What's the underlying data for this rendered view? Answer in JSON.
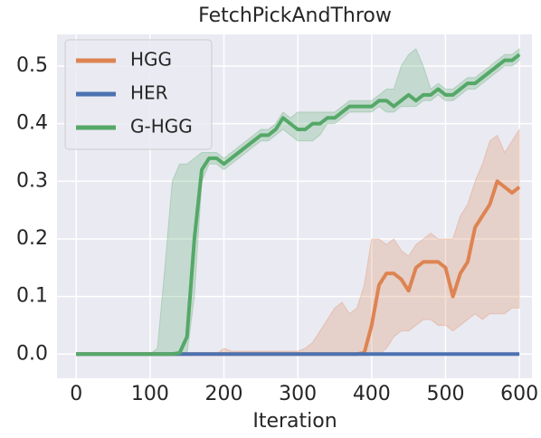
{
  "chart_data": {
    "type": "line",
    "title": "FetchPickAndThrow",
    "x_label": "Iteration",
    "x": [
      0,
      10,
      20,
      30,
      40,
      50,
      60,
      70,
      80,
      90,
      100,
      110,
      120,
      130,
      140,
      150,
      160,
      170,
      180,
      190,
      200,
      210,
      220,
      230,
      240,
      250,
      260,
      270,
      280,
      290,
      300,
      310,
      320,
      330,
      340,
      350,
      360,
      370,
      380,
      390,
      400,
      410,
      420,
      430,
      440,
      450,
      460,
      470,
      480,
      490,
      500,
      510,
      520,
      530,
      540,
      550,
      560,
      570,
      580,
      590,
      600
    ],
    "xlim": [
      -26,
      617
    ],
    "ylim": [
      -0.042,
      0.555
    ],
    "xticks": [
      0,
      100,
      200,
      300,
      400,
      500,
      600
    ],
    "yticks": [
      {
        "value": 0,
        "label": "0.0"
      },
      0.1,
      0.2,
      0.3,
      0.4,
      0.5
    ],
    "grid": true,
    "legend": "upper left",
    "series": [
      {
        "name": "HGG",
        "color": "#dd8452",
        "values": [
          0,
          0,
          0,
          0,
          0,
          0,
          0,
          0,
          0,
          0,
          0,
          0,
          0,
          0,
          0,
          0,
          0,
          0,
          0,
          0,
          0,
          0,
          0,
          0,
          0,
          0,
          0,
          0,
          0,
          0,
          0,
          0,
          0,
          0,
          0,
          0,
          0,
          0,
          0,
          0.002,
          0.05,
          0.12,
          0.14,
          0.14,
          0.13,
          0.11,
          0.15,
          0.16,
          0.16,
          0.16,
          0.15,
          0.1,
          0.14,
          0.16,
          0.22,
          0.24,
          0.26,
          0.3,
          0.29,
          0.28,
          0.29
        ],
        "lower": [
          0,
          0,
          0,
          0,
          0,
          0,
          0,
          0,
          0,
          0,
          0,
          0,
          0,
          0,
          0,
          0,
          0,
          0,
          0,
          0,
          0,
          0,
          0,
          0,
          0,
          0,
          0,
          0,
          0,
          0,
          0,
          0,
          0,
          0,
          0,
          0,
          0,
          0,
          0,
          0,
          0,
          0,
          0.01,
          0.03,
          0.04,
          0.04,
          0.05,
          0.06,
          0.06,
          0.05,
          0.05,
          0.04,
          0.05,
          0.06,
          0.07,
          0.06,
          0.07,
          0.07,
          0.07,
          0.08,
          0.08
        ],
        "upper": [
          0,
          0,
          0,
          0,
          0,
          0,
          0,
          0,
          0,
          0,
          0,
          0,
          0,
          0,
          0,
          0,
          0,
          0,
          0,
          0,
          0.01,
          0.005,
          0.005,
          0.005,
          0.005,
          0.005,
          0.005,
          0.005,
          0.005,
          0.005,
          0.005,
          0.01,
          0.02,
          0.04,
          0.06,
          0.08,
          0.09,
          0.07,
          0.08,
          0.12,
          0.2,
          0.2,
          0.19,
          0.2,
          0.18,
          0.17,
          0.19,
          0.2,
          0.21,
          0.2,
          0.2,
          0.2,
          0.24,
          0.26,
          0.3,
          0.33,
          0.37,
          0.38,
          0.35,
          0.37,
          0.39
        ]
      },
      {
        "name": "HER",
        "color": "#4c72b0",
        "values": [
          0,
          0,
          0,
          0,
          0,
          0,
          0,
          0,
          0,
          0,
          0,
          0,
          0,
          0,
          0,
          0,
          0,
          0,
          0,
          0,
          0,
          0,
          0,
          0,
          0,
          0,
          0,
          0,
          0,
          0,
          0,
          0,
          0,
          0,
          0,
          0,
          0,
          0,
          0,
          0,
          0,
          0,
          0,
          0,
          0,
          0,
          0,
          0,
          0,
          0,
          0,
          0,
          0,
          0,
          0,
          0,
          0,
          0,
          0,
          0,
          0
        ]
      },
      {
        "name": "G-HGG",
        "color": "#55a868",
        "values": [
          0,
          0,
          0,
          0,
          0,
          0,
          0,
          0,
          0,
          0,
          0,
          0,
          0,
          0,
          0.002,
          0.03,
          0.2,
          0.32,
          0.34,
          0.34,
          0.33,
          0.34,
          0.35,
          0.36,
          0.37,
          0.38,
          0.38,
          0.39,
          0.41,
          0.4,
          0.39,
          0.39,
          0.4,
          0.4,
          0.41,
          0.41,
          0.42,
          0.43,
          0.43,
          0.43,
          0.43,
          0.44,
          0.44,
          0.43,
          0.44,
          0.45,
          0.44,
          0.45,
          0.45,
          0.46,
          0.45,
          0.45,
          0.46,
          0.47,
          0.47,
          0.48,
          0.49,
          0.5,
          0.51,
          0.51,
          0.52
        ],
        "lower": [
          0,
          0,
          0,
          0,
          0,
          0,
          0,
          0,
          0,
          0,
          0,
          0,
          0,
          0,
          0,
          0,
          0.1,
          0.3,
          0.33,
          0.33,
          0.32,
          0.33,
          0.34,
          0.35,
          0.36,
          0.37,
          0.37,
          0.38,
          0.39,
          0.38,
          0.37,
          0.37,
          0.37,
          0.38,
          0.4,
          0.4,
          0.41,
          0.42,
          0.42,
          0.42,
          0.42,
          0.43,
          0.42,
          0.42,
          0.43,
          0.43,
          0.43,
          0.44,
          0.44,
          0.45,
          0.44,
          0.44,
          0.45,
          0.46,
          0.46,
          0.47,
          0.48,
          0.49,
          0.5,
          0.5,
          0.51
        ],
        "upper": [
          0,
          0,
          0,
          0,
          0,
          0,
          0,
          0,
          0,
          0,
          0,
          0.01,
          0.15,
          0.3,
          0.33,
          0.33,
          0.34,
          0.35,
          0.35,
          0.35,
          0.34,
          0.35,
          0.36,
          0.37,
          0.38,
          0.39,
          0.39,
          0.4,
          0.42,
          0.41,
          0.42,
          0.42,
          0.42,
          0.42,
          0.42,
          0.42,
          0.43,
          0.44,
          0.44,
          0.44,
          0.44,
          0.45,
          0.46,
          0.46,
          0.5,
          0.52,
          0.53,
          0.5,
          0.46,
          0.47,
          0.46,
          0.46,
          0.47,
          0.48,
          0.48,
          0.49,
          0.5,
          0.51,
          0.52,
          0.52,
          0.53
        ]
      }
    ]
  }
}
